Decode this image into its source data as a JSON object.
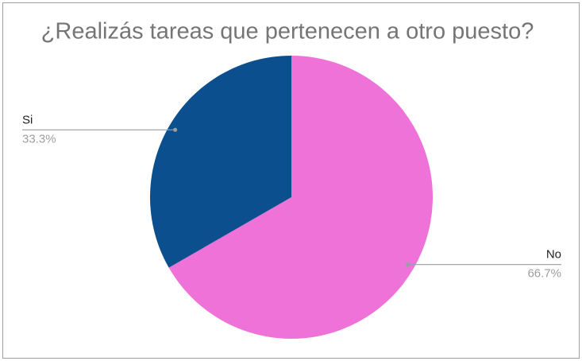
{
  "chart_data": {
    "type": "pie",
    "title": "¿Realizás tareas que pertenecen a otro puesto?",
    "categories": [
      "No",
      "Si"
    ],
    "values": [
      66.7,
      33.3
    ],
    "value_labels": [
      "66.7%",
      "33.3%"
    ],
    "colors": [
      "#ee72d8",
      "#0b4f8f"
    ]
  }
}
